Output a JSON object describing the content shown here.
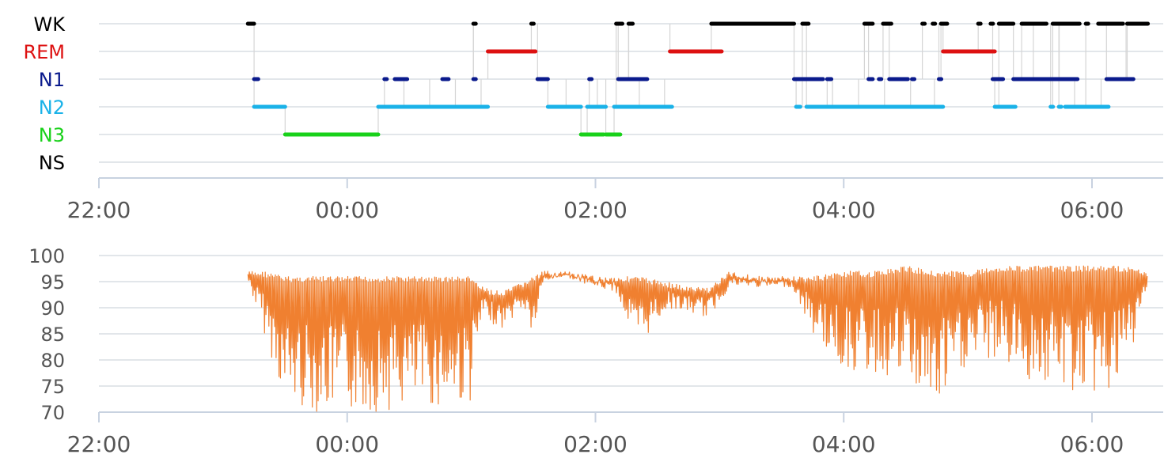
{
  "chart_data": [
    {
      "type": "line",
      "chart_kind": "hypnogram",
      "title": "",
      "xlabel": "",
      "ylabel": "",
      "x_ticks": [
        "22:00",
        "00:00",
        "02:00",
        "04:00",
        "06:00"
      ],
      "xlim": [
        "22:00",
        "06:30"
      ],
      "stage_labels": [
        {
          "label": "WK",
          "color": "#000000"
        },
        {
          "label": "REM",
          "color": "#dd1111"
        },
        {
          "label": "N1",
          "color": "#0a1a8c"
        },
        {
          "label": "N2",
          "color": "#1ab2e8"
        },
        {
          "label": "N3",
          "color": "#19d11a"
        },
        {
          "label": "NS",
          "color": "#000000"
        }
      ],
      "grid": true,
      "series": [
        {
          "stage": "WK",
          "intervals": [
            [
              "23:12",
              "23:15"
            ],
            [
              "01:01",
              "01:02"
            ],
            [
              "01:29",
              "01:30"
            ],
            [
              "02:10",
              "02:13"
            ],
            [
              "02:16",
              "02:18"
            ],
            [
              "02:56",
              "03:36"
            ],
            [
              "03:40",
              "03:43"
            ],
            [
              "04:10",
              "04:14"
            ],
            [
              "04:19",
              "04:23"
            ],
            [
              "04:38",
              "04:39"
            ],
            [
              "04:43",
              "04:44"
            ],
            [
              "04:47",
              "04:50"
            ],
            [
              "05:05",
              "05:06"
            ],
            [
              "05:11",
              "05:12"
            ],
            [
              "05:15",
              "05:22"
            ],
            [
              "05:26",
              "05:38"
            ],
            [
              "05:41",
              "05:54"
            ],
            [
              "05:57",
              "05:58"
            ],
            [
              "06:03",
              "06:15"
            ],
            [
              "06:17",
              "06:27"
            ]
          ]
        },
        {
          "stage": "REM",
          "intervals": [
            [
              "01:08",
              "01:31"
            ],
            [
              "02:36",
              "03:01"
            ],
            [
              "04:48",
              "05:13"
            ]
          ]
        },
        {
          "stage": "N1",
          "intervals": [
            [
              "23:15",
              "23:17"
            ],
            [
              "00:18",
              "00:19"
            ],
            [
              "00:23",
              "00:29"
            ],
            [
              "00:46",
              "00:49"
            ],
            [
              "01:01",
              "01:02"
            ],
            [
              "01:32",
              "01:37"
            ],
            [
              "01:57",
              "01:58"
            ],
            [
              "02:11",
              "02:25"
            ],
            [
              "03:36",
              "03:50"
            ],
            [
              "03:52",
              "03:54"
            ],
            [
              "04:12",
              "04:14"
            ],
            [
              "04:17",
              "04:18"
            ],
            [
              "04:22",
              "04:31"
            ],
            [
              "04:33",
              "04:34"
            ],
            [
              "04:46",
              "04:47"
            ],
            [
              "05:12",
              "05:17"
            ],
            [
              "05:22",
              "05:53"
            ],
            [
              "06:07",
              "06:20"
            ]
          ]
        },
        {
          "stage": "N2",
          "intervals": [
            [
              "23:15",
              "23:30"
            ],
            [
              "00:15",
              "01:08"
            ],
            [
              "01:37",
              "01:53"
            ],
            [
              "01:56",
              "02:05"
            ],
            [
              "02:09",
              "02:37"
            ],
            [
              "03:37",
              "03:39"
            ],
            [
              "03:42",
              "04:48"
            ],
            [
              "05:13",
              "05:23"
            ],
            [
              "05:40",
              "05:41"
            ],
            [
              "05:44",
              "05:45"
            ],
            [
              "05:47",
              "06:08"
            ]
          ]
        },
        {
          "stage": "N3",
          "intervals": [
            [
              "23:30",
              "00:15"
            ],
            [
              "01:53",
              "02:04"
            ],
            [
              "02:05",
              "02:12"
            ]
          ]
        }
      ]
    },
    {
      "type": "line",
      "title": "",
      "xlabel": "",
      "ylabel": "",
      "x_ticks": [
        "22:00",
        "00:00",
        "02:00",
        "04:00",
        "06:00"
      ],
      "y_ticks": [
        70,
        75,
        80,
        85,
        90,
        95,
        100
      ],
      "ylim": [
        70,
        100
      ],
      "color": "#f08030",
      "grid": true,
      "series": [
        {
          "x": [
            "23:12",
            "23:20",
            "23:30",
            "23:45",
            "00:00",
            "00:15",
            "00:30",
            "00:45",
            "01:00",
            "01:05",
            "01:15",
            "01:25",
            "01:30",
            "01:35",
            "01:45",
            "02:00",
            "02:10",
            "02:20",
            "02:35",
            "02:45",
            "02:55",
            "03:05",
            "03:20",
            "03:35",
            "03:45",
            "04:00",
            "04:15",
            "04:30",
            "04:45",
            "05:00",
            "05:15",
            "05:30",
            "05:45",
            "06:00",
            "06:15",
            "06:27"
          ],
          "y_max": [
            97,
            97,
            96,
            96,
            96,
            96,
            96,
            96,
            96,
            94,
            93,
            95,
            96,
            97,
            97,
            96,
            96,
            96,
            95,
            94,
            94,
            97,
            96,
            96,
            96,
            97,
            97,
            98,
            97,
            97,
            98,
            98,
            98,
            98,
            98,
            97
          ],
          "y_min": [
            95,
            85,
            72,
            70,
            70,
            70,
            71,
            71,
            72,
            88,
            86,
            90,
            84,
            95,
            96,
            94,
            93,
            82,
            90,
            89,
            88,
            94,
            94,
            94,
            85,
            78,
            77,
            76,
            70,
            79,
            80,
            76,
            74,
            73,
            75,
            93
          ]
        }
      ]
    }
  ]
}
